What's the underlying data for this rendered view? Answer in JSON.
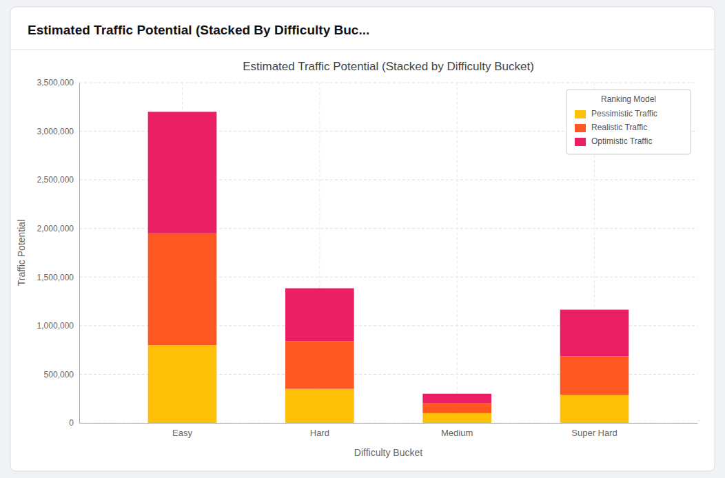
{
  "chart_data": {
    "type": "bar",
    "stacked": true,
    "subtitle": "Estimated Traffic Potential (Stacked By Difficulty Buc...",
    "title": "Estimated Traffic Potential (Stacked by Difficulty Bucket)",
    "x_label": "Difficulty Bucket",
    "y_label": "Traffic Potential",
    "categories": [
      "Easy",
      "Hard",
      "Medium",
      "Super Hard"
    ],
    "series": [
      {
        "name": "Pessimistic Traffic",
        "color": "#FFC107",
        "values": [
          800000,
          350000,
          100000,
          290000
        ]
      },
      {
        "name": "Realistic Traffic",
        "color": "#FF5722",
        "values": [
          1150000,
          490000,
          105000,
          395000
        ]
      },
      {
        "name": "Optimistic Traffic",
        "color": "#E91E63",
        "values": [
          1250000,
          545000,
          95000,
          480000
        ]
      }
    ],
    "ylim": [
      0,
      3500000
    ],
    "yticks": [
      0,
      {
        "value": 500000,
        "label": "500,000"
      },
      {
        "value": 1000000,
        "label": "1,000,000"
      },
      {
        "value": 1500000,
        "label": "1,500,000"
      },
      {
        "value": 2000000,
        "label": "2,000,000"
      },
      {
        "value": 2500000,
        "label": "2,500,000"
      },
      {
        "value": 3000000,
        "label": "3,000,000"
      },
      {
        "value": 3500000,
        "label": "3,500,000"
      }
    ],
    "grid": true,
    "legend": "top-right",
    "legend_title": "Ranking Model"
  }
}
